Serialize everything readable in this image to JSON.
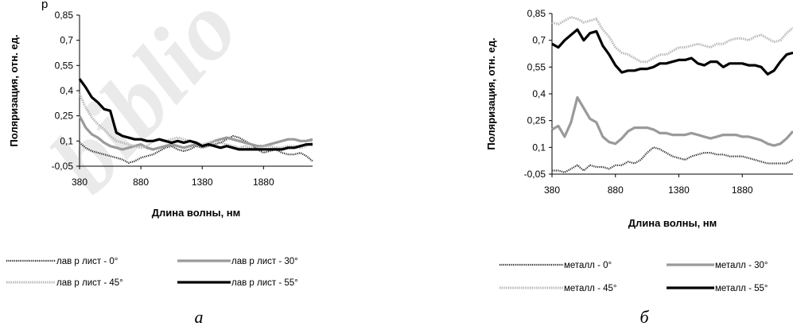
{
  "figure": {
    "watermark_text": "biblio",
    "page_fragment": "р"
  },
  "chart_data": [
    {
      "type": "line",
      "panel_letter": "а",
      "xlabel": "Длина волны, нм",
      "ylabel": "Поляризация, отн. ед.",
      "xlim": [
        380,
        2280
      ],
      "ylim": [
        -0.05,
        0.85
      ],
      "xticks": [
        "380",
        "880",
        "1380",
        "1880"
      ],
      "yticks": [
        "-0,05",
        "0,1",
        "0,25",
        "0,4",
        "0,55",
        "0,7",
        "0,85"
      ],
      "legend_position": "bottom",
      "series": [
        {
          "name": "лав р лист - 0°",
          "style": "dotted-dark",
          "x": [
            380,
            430,
            480,
            530,
            580,
            630,
            680,
            730,
            780,
            830,
            880,
            930,
            980,
            1030,
            1080,
            1130,
            1180,
            1230,
            1280,
            1330,
            1380,
            1430,
            1480,
            1530,
            1580,
            1630,
            1680,
            1730,
            1780,
            1830,
            1880,
            1930,
            1980,
            2030,
            2080,
            2130,
            2180,
            2230,
            2280
          ],
          "y": [
            0.09,
            0.06,
            0.04,
            0.03,
            0.02,
            0.01,
            0.0,
            -0.01,
            -0.03,
            -0.02,
            0.0,
            0.01,
            0.02,
            0.04,
            0.06,
            0.07,
            0.05,
            0.04,
            0.05,
            0.07,
            0.06,
            0.07,
            0.08,
            0.09,
            0.11,
            0.13,
            0.12,
            0.1,
            0.08,
            0.05,
            0.03,
            0.04,
            0.05,
            0.03,
            0.02,
            0.02,
            0.03,
            0.01,
            -0.02
          ]
        },
        {
          "name": "лав р лист - 30°",
          "style": "solid-gray",
          "x": [
            380,
            430,
            480,
            530,
            580,
            630,
            680,
            730,
            780,
            830,
            880,
            930,
            980,
            1030,
            1080,
            1130,
            1180,
            1230,
            1280,
            1330,
            1380,
            1430,
            1480,
            1530,
            1580,
            1630,
            1680,
            1730,
            1780,
            1830,
            1880,
            1930,
            1980,
            2030,
            2080,
            2130,
            2180,
            2230,
            2280
          ],
          "y": [
            0.25,
            0.18,
            0.14,
            0.12,
            0.09,
            0.07,
            0.06,
            0.05,
            0.06,
            0.07,
            0.08,
            0.06,
            0.05,
            0.06,
            0.07,
            0.08,
            0.07,
            0.06,
            0.07,
            0.08,
            0.07,
            0.08,
            0.1,
            0.11,
            0.12,
            0.11,
            0.1,
            0.09,
            0.08,
            0.07,
            0.07,
            0.08,
            0.09,
            0.1,
            0.11,
            0.11,
            0.1,
            0.1,
            0.11
          ]
        },
        {
          "name": "лав р лист - 45°",
          "style": "hatched-light",
          "x": [
            380,
            430,
            480,
            530,
            580,
            630,
            680,
            730,
            780,
            830,
            880,
            930,
            980,
            1030,
            1080,
            1130,
            1180,
            1230,
            1280,
            1330,
            1380,
            1430,
            1480,
            1530,
            1580,
            1630,
            1680,
            1730,
            1780,
            1830,
            1880,
            1930,
            1980,
            2030,
            2080,
            2130,
            2180,
            2230,
            2280
          ],
          "y": [
            0.38,
            0.3,
            0.24,
            0.2,
            0.17,
            0.13,
            0.1,
            0.09,
            0.08,
            0.07,
            0.06,
            0.07,
            0.1,
            0.11,
            0.1,
            0.11,
            0.12,
            0.11,
            0.1,
            0.09,
            0.08,
            0.09,
            0.1,
            0.09,
            0.08,
            0.07,
            0.06,
            0.07,
            0.06,
            0.06,
            0.07,
            0.07,
            0.06,
            0.06,
            0.07,
            0.07,
            0.06,
            0.07,
            0.1
          ]
        },
        {
          "name": "лав р лист - 55°",
          "style": "solid-black",
          "x": [
            380,
            430,
            480,
            530,
            580,
            630,
            680,
            730,
            780,
            830,
            880,
            930,
            980,
            1030,
            1080,
            1130,
            1180,
            1230,
            1280,
            1330,
            1380,
            1430,
            1480,
            1530,
            1580,
            1630,
            1680,
            1730,
            1780,
            1830,
            1880,
            1930,
            1980,
            2030,
            2080,
            2130,
            2180,
            2230,
            2280
          ],
          "y": [
            0.47,
            0.42,
            0.36,
            0.33,
            0.29,
            0.28,
            0.15,
            0.13,
            0.12,
            0.11,
            0.11,
            0.1,
            0.1,
            0.11,
            0.1,
            0.09,
            0.1,
            0.09,
            0.1,
            0.09,
            0.07,
            0.08,
            0.07,
            0.06,
            0.07,
            0.06,
            0.05,
            0.05,
            0.05,
            0.05,
            0.05,
            0.05,
            0.05,
            0.05,
            0.06,
            0.06,
            0.07,
            0.08,
            0.08
          ]
        }
      ]
    },
    {
      "type": "line",
      "panel_letter": "б",
      "xlabel": "Длина волны, нм",
      "ylabel": "Поляризация, отн. ед.",
      "xlim": [
        380,
        2280
      ],
      "ylim": [
        -0.05,
        0.85
      ],
      "xticks": [
        "380",
        "880",
        "1380",
        "1880"
      ],
      "yticks": [
        "-0,05",
        "0,1",
        "0,25",
        "0,4",
        "0,55",
        "0,7",
        "0,85"
      ],
      "legend_position": "bottom",
      "series": [
        {
          "name": "металл - 0°",
          "style": "dotted-dark",
          "x": [
            380,
            430,
            480,
            530,
            580,
            630,
            680,
            730,
            780,
            830,
            880,
            930,
            980,
            1030,
            1080,
            1130,
            1180,
            1230,
            1280,
            1330,
            1380,
            1430,
            1480,
            1530,
            1580,
            1630,
            1680,
            1730,
            1780,
            1830,
            1880,
            1930,
            1980,
            2030,
            2080,
            2130,
            2180,
            2230,
            2280
          ],
          "y": [
            -0.03,
            -0.03,
            -0.04,
            -0.02,
            0.0,
            -0.03,
            0.0,
            -0.01,
            -0.01,
            -0.02,
            0.0,
            0.0,
            0.02,
            0.01,
            0.03,
            0.07,
            0.1,
            0.09,
            0.07,
            0.05,
            0.04,
            0.03,
            0.05,
            0.06,
            0.07,
            0.07,
            0.06,
            0.06,
            0.05,
            0.05,
            0.05,
            0.04,
            0.03,
            0.02,
            0.01,
            0.01,
            0.01,
            0.01,
            0.03
          ]
        },
        {
          "name": "металл - 30°",
          "style": "solid-gray",
          "x": [
            380,
            430,
            480,
            530,
            580,
            630,
            680,
            730,
            780,
            830,
            880,
            930,
            980,
            1030,
            1080,
            1130,
            1180,
            1230,
            1280,
            1330,
            1380,
            1430,
            1480,
            1530,
            1580,
            1630,
            1680,
            1730,
            1780,
            1830,
            1880,
            1930,
            1980,
            2030,
            2080,
            2130,
            2180,
            2230,
            2280
          ],
          "y": [
            0.2,
            0.22,
            0.16,
            0.24,
            0.38,
            0.32,
            0.26,
            0.24,
            0.16,
            0.13,
            0.12,
            0.15,
            0.19,
            0.21,
            0.21,
            0.21,
            0.2,
            0.18,
            0.18,
            0.17,
            0.17,
            0.17,
            0.18,
            0.17,
            0.16,
            0.15,
            0.16,
            0.17,
            0.17,
            0.17,
            0.16,
            0.16,
            0.15,
            0.14,
            0.12,
            0.11,
            0.12,
            0.15,
            0.19
          ]
        },
        {
          "name": "металл - 45°",
          "style": "hatched-light",
          "x": [
            380,
            430,
            480,
            530,
            580,
            630,
            680,
            730,
            780,
            830,
            880,
            930,
            980,
            1030,
            1080,
            1130,
            1180,
            1230,
            1280,
            1330,
            1380,
            1430,
            1480,
            1530,
            1580,
            1630,
            1680,
            1730,
            1780,
            1830,
            1880,
            1930,
            1980,
            2030,
            2080,
            2130,
            2180,
            2230,
            2280
          ],
          "y": [
            0.8,
            0.79,
            0.81,
            0.83,
            0.82,
            0.8,
            0.81,
            0.82,
            0.76,
            0.72,
            0.66,
            0.63,
            0.62,
            0.6,
            0.58,
            0.58,
            0.6,
            0.62,
            0.62,
            0.64,
            0.66,
            0.66,
            0.67,
            0.68,
            0.67,
            0.66,
            0.68,
            0.68,
            0.7,
            0.71,
            0.71,
            0.7,
            0.72,
            0.73,
            0.71,
            0.69,
            0.7,
            0.74,
            0.77
          ]
        },
        {
          "name": "металл - 55°",
          "style": "solid-black",
          "x": [
            380,
            430,
            480,
            530,
            580,
            630,
            680,
            730,
            780,
            830,
            880,
            930,
            980,
            1030,
            1080,
            1130,
            1180,
            1230,
            1280,
            1330,
            1380,
            1430,
            1480,
            1530,
            1580,
            1630,
            1680,
            1730,
            1780,
            1830,
            1880,
            1930,
            1980,
            2030,
            2080,
            2130,
            2180,
            2230,
            2280
          ],
          "y": [
            0.68,
            0.66,
            0.7,
            0.73,
            0.76,
            0.7,
            0.74,
            0.75,
            0.67,
            0.62,
            0.56,
            0.52,
            0.53,
            0.53,
            0.54,
            0.54,
            0.55,
            0.57,
            0.57,
            0.58,
            0.59,
            0.59,
            0.6,
            0.57,
            0.56,
            0.58,
            0.58,
            0.55,
            0.57,
            0.57,
            0.57,
            0.56,
            0.56,
            0.55,
            0.51,
            0.53,
            0.58,
            0.62,
            0.63
          ]
        }
      ]
    }
  ]
}
